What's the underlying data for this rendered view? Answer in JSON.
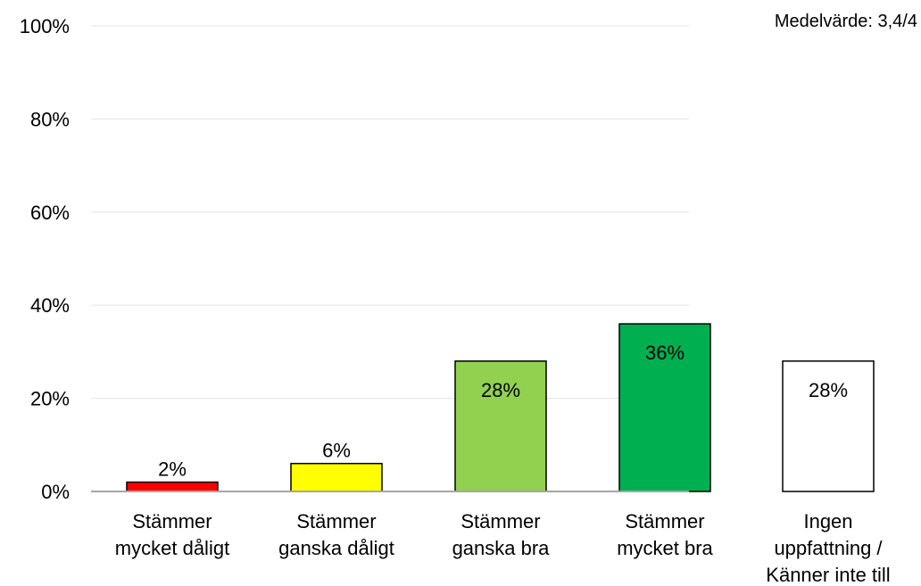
{
  "chart_data": {
    "type": "bar",
    "categories": [
      [
        "Stämmer",
        "mycket dåligt"
      ],
      [
        "Stämmer",
        "ganska dåligt"
      ],
      [
        "Stämmer",
        "ganska bra"
      ],
      [
        "Stämmer",
        "mycket bra"
      ],
      [
        "Ingen",
        "uppfattning /",
        "Känner inte till"
      ]
    ],
    "values": [
      2,
      6,
      28,
      36,
      28
    ],
    "data_labels": [
      "2%",
      "6%",
      "28%",
      "36%",
      "28%"
    ],
    "colors": [
      "#ff0000",
      "#ffff00",
      "#92d050",
      "#00b050",
      "#ffffff"
    ],
    "ylim": [
      0,
      100
    ],
    "y_ticks": [
      0,
      20,
      40,
      60,
      80,
      100
    ],
    "y_tick_labels": [
      "0%",
      "20%",
      "40%",
      "60%",
      "80%",
      "100%"
    ],
    "grid": true,
    "annotation": "Medelvärde: 3,4/4"
  }
}
